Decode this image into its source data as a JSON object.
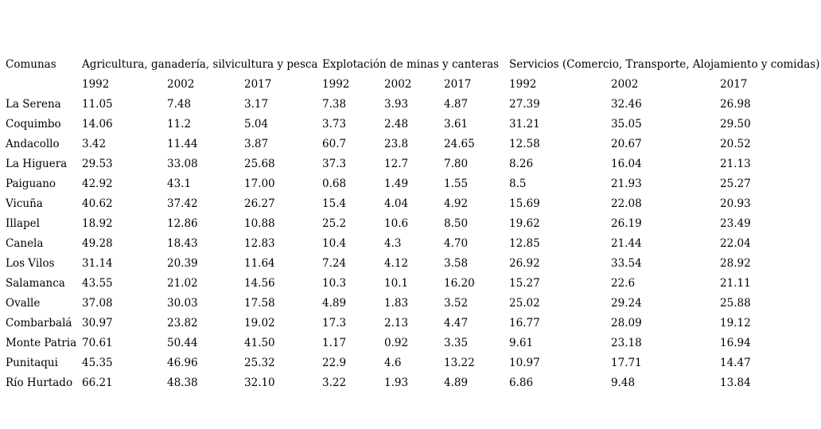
{
  "table": {
    "comunas_header": "Comunas",
    "groups": [
      {
        "label": "Agricultura, ganadería, silvicultura y pesca",
        "years": [
          "1992",
          "2002",
          "2017"
        ]
      },
      {
        "label": "Explotación de minas y canteras",
        "years": [
          "1992",
          "2002",
          "2017"
        ]
      },
      {
        "label": "Servicios (Comercio, Transporte, Alojamiento y comidas)",
        "years": [
          "1992",
          "2002",
          "2017"
        ]
      }
    ],
    "rows": [
      {
        "comuna": "La Serena",
        "values": [
          "11.05",
          "7.48",
          "3.17",
          "7.38",
          "3.93",
          "4.87",
          "27.39",
          "32.46",
          "26.98"
        ]
      },
      {
        "comuna": "Coquimbo",
        "values": [
          "14.06",
          "11.2",
          "5.04",
          "3.73",
          "2.48",
          "3.61",
          "31.21",
          "35.05",
          "29.50"
        ]
      },
      {
        "comuna": "Andacollo",
        "values": [
          "3.42",
          "11.44",
          "3.87",
          "60.7",
          "23.8",
          "24.65",
          "12.58",
          "20.67",
          "20.52"
        ]
      },
      {
        "comuna": "La Higuera",
        "values": [
          "29.53",
          "33.08",
          "25.68",
          "37.3",
          "12.7",
          "7.80",
          "8.26",
          "16.04",
          "21.13"
        ]
      },
      {
        "comuna": "Paiguano",
        "values": [
          "42.92",
          "43.1",
          "17.00",
          "0.68",
          "1.49",
          "1.55",
          "8.5",
          "21.93",
          "25.27"
        ]
      },
      {
        "comuna": "Vicuña",
        "values": [
          "40.62",
          "37.42",
          "26.27",
          "15.4",
          "4.04",
          "4.92",
          "15.69",
          "22.08",
          "20.93"
        ]
      },
      {
        "comuna": "Illapel",
        "values": [
          "18.92",
          "12.86",
          "10.88",
          "25.2",
          "10.6",
          "8.50",
          "19.62",
          "26.19",
          "23.49"
        ]
      },
      {
        "comuna": "Canela",
        "values": [
          "49.28",
          "18.43",
          "12.83",
          "10.4",
          "4.3",
          "4.70",
          "12.85",
          "21.44",
          "22.04"
        ]
      },
      {
        "comuna": "Los Vilos",
        "values": [
          "31.14",
          "20.39",
          "11.64",
          "7.24",
          "4.12",
          "3.58",
          "26.92",
          "33.54",
          "28.92"
        ]
      },
      {
        "comuna": "Salamanca",
        "values": [
          "43.55",
          "21.02",
          "14.56",
          "10.3",
          "10.1",
          "16.20",
          "15.27",
          "22.6",
          "21.11"
        ]
      },
      {
        "comuna": "Ovalle",
        "values": [
          "37.08",
          "30.03",
          "17.58",
          "4.89",
          "1.83",
          "3.52",
          "25.02",
          "29.24",
          "25.88"
        ]
      },
      {
        "comuna": "Combarbalá",
        "values": [
          "30.97",
          "23.82",
          "19.02",
          "17.3",
          "2.13",
          "4.47",
          "16.77",
          "28.09",
          "19.12"
        ]
      },
      {
        "comuna": "Monte Patria",
        "values": [
          "70.61",
          "50.44",
          "41.50",
          "1.17",
          "0.92",
          "3.35",
          "9.61",
          "23.18",
          "16.94"
        ]
      },
      {
        "comuna": "Punitaqui",
        "values": [
          "45.35",
          "46.96",
          "25.32",
          "22.9",
          "4.6",
          "13.22",
          "10.97",
          "17.71",
          "14.47"
        ]
      },
      {
        "comuna": "Río Hurtado",
        "values": [
          "66.21",
          "48.38",
          "32.10",
          "3.22",
          "1.93",
          "4.89",
          "6.86",
          "9.48",
          "13.84"
        ]
      }
    ]
  }
}
